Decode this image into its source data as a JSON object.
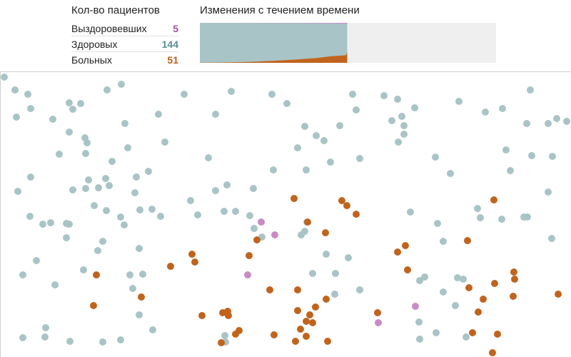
{
  "counts": {
    "title": "Кол-во пациентов",
    "rows": [
      {
        "label": "Выздоровевших",
        "value": "5",
        "color": "#a0559c"
      },
      {
        "label": "Здоровых",
        "value": "144",
        "color": "#5a8f99"
      },
      {
        "label": "Больных",
        "value": "51",
        "color": "#b5611c"
      }
    ]
  },
  "chart": {
    "title": "Изменения с течением времени"
  },
  "colors": {
    "healthy": "#a9c4c6",
    "sick": "#c0641d",
    "recovered": "#c98bc4",
    "future": "#efefef"
  },
  "chart_data": {
    "type": "area",
    "total_time": 100,
    "population": 200,
    "series": [
      {
        "key": "sick",
        "points": [
          [
            0,
            1
          ],
          [
            20,
            2
          ],
          [
            35,
            5
          ],
          [
            50,
            10
          ],
          [
            65,
            16
          ],
          [
            80,
            24
          ],
          [
            90,
            33
          ],
          [
            100,
            38
          ],
          [
            101,
            51
          ]
        ]
      },
      {
        "key": "recovered",
        "points": [
          [
            0,
            0
          ],
          [
            60,
            1
          ],
          [
            80,
            2
          ],
          [
            90,
            3
          ],
          [
            100,
            4
          ],
          [
            101,
            5
          ]
        ]
      }
    ],
    "current_time": 101
  },
  "people": [
    [
      5,
      107,
      "h"
    ],
    [
      20,
      125,
      "h"
    ],
    [
      38,
      131,
      "h"
    ],
    [
      22,
      163,
      "h"
    ],
    [
      42,
      151,
      "h"
    ],
    [
      73,
      166,
      "h"
    ],
    [
      96,
      143,
      "h"
    ],
    [
      101,
      152,
      "h"
    ],
    [
      112,
      144,
      "h"
    ],
    [
      149,
      125,
      "h"
    ],
    [
      169,
      117,
      "h"
    ],
    [
      174,
      172,
      "h"
    ],
    [
      257,
      131,
      "h"
    ],
    [
      323,
      127,
      "h"
    ],
    [
      380,
      131,
      "h"
    ],
    [
      401,
      144,
      "h"
    ],
    [
      221,
      159,
      "h"
    ],
    [
      301,
      159,
      "h"
    ],
    [
      96,
      184,
      "h"
    ],
    [
      118,
      192,
      "h"
    ],
    [
      121,
      199,
      "h"
    ],
    [
      119,
      214,
      "h"
    ],
    [
      82,
      215,
      "h"
    ],
    [
      156,
      225,
      "h"
    ],
    [
      178,
      206,
      "h"
    ],
    [
      230,
      198,
      "h"
    ],
    [
      291,
      220,
      "h"
    ],
    [
      42,
      247,
      "h"
    ],
    [
      24,
      267,
      "h"
    ],
    [
      123,
      251,
      "h"
    ],
    [
      147,
      249,
      "h"
    ],
    [
      152,
      259,
      "h"
    ],
    [
      101,
      265,
      "h"
    ],
    [
      119,
      263,
      "h"
    ],
    [
      137,
      262,
      "h"
    ],
    [
      190,
      247,
      "h"
    ],
    [
      207,
      239,
      "h"
    ],
    [
      188,
      269,
      "h"
    ],
    [
      131,
      287,
      "h"
    ],
    [
      148,
      294,
      "h"
    ],
    [
      168,
      303,
      "h"
    ],
    [
      195,
      293,
      "h"
    ],
    [
      212,
      292,
      "h"
    ],
    [
      224,
      302,
      "h"
    ],
    [
      266,
      280,
      "h"
    ],
    [
      276,
      300,
      "h"
    ],
    [
      301,
      266,
      "h"
    ],
    [
      317,
      258,
      "h"
    ],
    [
      354,
      263,
      "h"
    ],
    [
      382,
      237,
      "h"
    ],
    [
      428,
      237,
      "h"
    ],
    [
      462,
      226,
      "h"
    ],
    [
      503,
      221,
      "h"
    ],
    [
      416,
      206,
      "h"
    ],
    [
      426,
      176,
      "h"
    ],
    [
      442,
      189,
      "h"
    ],
    [
      453,
      196,
      "h"
    ],
    [
      475,
      175,
      "h"
    ],
    [
      493,
      131,
      "h"
    ],
    [
      498,
      153,
      "h"
    ],
    [
      537,
      133,
      "h"
    ],
    [
      556,
      138,
      "h"
    ],
    [
      548,
      168,
      "h"
    ],
    [
      562,
      162,
      "h"
    ],
    [
      565,
      175,
      "h"
    ],
    [
      580,
      150,
      "h"
    ],
    [
      557,
      198,
      "h"
    ],
    [
      565,
      187,
      "h"
    ],
    [
      609,
      219,
      "h"
    ],
    [
      630,
      242,
      "h"
    ],
    [
      642,
      141,
      "h"
    ],
    [
      679,
      156,
      "h"
    ],
    [
      703,
      151,
      "h"
    ],
    [
      742,
      125,
      "h"
    ],
    [
      737,
      172,
      "h"
    ],
    [
      767,
      172,
      "h"
    ],
    [
      779,
      165,
      "h"
    ],
    [
      793,
      169,
      "h"
    ],
    [
      708,
      209,
      "h"
    ],
    [
      744,
      217,
      "h"
    ],
    [
      773,
      218,
      "h"
    ],
    [
      714,
      238,
      "h"
    ],
    [
      767,
      268,
      "h"
    ],
    [
      41,
      302,
      "h"
    ],
    [
      59,
      313,
      "h"
    ],
    [
      70,
      311,
      "h"
    ],
    [
      92,
      312,
      "h"
    ],
    [
      96,
      313,
      "h"
    ],
    [
      92,
      332,
      "h"
    ],
    [
      143,
      337,
      "h"
    ],
    [
      136,
      350,
      "h"
    ],
    [
      173,
      314,
      "h"
    ],
    [
      194,
      347,
      "h"
    ],
    [
      313,
      295,
      "h"
    ],
    [
      329,
      295,
      "h"
    ],
    [
      349,
      301,
      "h"
    ],
    [
      355,
      319,
      "h"
    ],
    [
      366,
      331,
      "h"
    ],
    [
      421,
      328,
      "h"
    ],
    [
      426,
      323,
      "h"
    ],
    [
      429,
      310,
      "h"
    ],
    [
      574,
      296,
      "h"
    ],
    [
      612,
      312,
      "h"
    ],
    [
      620,
      337,
      "h"
    ],
    [
      668,
      291,
      "h"
    ],
    [
      672,
      304,
      "h"
    ],
    [
      702,
      306,
      "h"
    ],
    [
      733,
      303,
      "h"
    ],
    [
      738,
      303,
      "h"
    ],
    [
      772,
      333,
      "h"
    ],
    [
      50,
      364,
      "h"
    ],
    [
      31,
      384,
      "h"
    ],
    [
      76,
      398,
      "h"
    ],
    [
      116,
      377,
      "h"
    ],
    [
      181,
      384,
      "h"
    ],
    [
      199,
      383,
      "h"
    ],
    [
      185,
      403,
      "h"
    ],
    [
      194,
      440,
      "h"
    ],
    [
      213,
      461,
      "h"
    ],
    [
      456,
      355,
      "h"
    ],
    [
      487,
      360,
      "h"
    ],
    [
      437,
      382,
      "h"
    ],
    [
      469,
      382,
      "h"
    ],
    [
      468,
      411,
      "h"
    ],
    [
      503,
      405,
      "h"
    ],
    [
      587,
      392,
      "h"
    ],
    [
      594,
      387,
      "h"
    ],
    [
      620,
      408,
      "h"
    ],
    [
      640,
      388,
      "h"
    ],
    [
      648,
      390,
      "h"
    ],
    [
      637,
      427,
      "h"
    ],
    [
      586,
      450,
      "h"
    ],
    [
      610,
      465,
      "h"
    ],
    [
      652,
      471,
      "h"
    ],
    [
      587,
      474,
      "h"
    ],
    [
      314,
      469,
      "h"
    ],
    [
      315,
      478,
      "h"
    ],
    [
      63,
      458,
      "h"
    ],
    [
      62,
      471,
      "h"
    ],
    [
      31,
      472,
      "h"
    ],
    [
      97,
      477,
      "h"
    ],
    [
      143,
      478,
      "h"
    ],
    [
      168,
      475,
      "h"
    ],
    [
      134,
      384,
      "s"
    ],
    [
      130,
      427,
      "s"
    ],
    [
      197,
      415,
      "s"
    ],
    [
      238,
      372,
      "s"
    ],
    [
      268,
      355,
      "s"
    ],
    [
      272,
      366,
      "s"
    ],
    [
      282,
      441,
      "s"
    ],
    [
      311,
      437,
      "s"
    ],
    [
      318,
      435,
      "s"
    ],
    [
      319,
      441,
      "s"
    ],
    [
      334,
      462,
      "s"
    ],
    [
      329,
      467,
      "s"
    ],
    [
      348,
      357,
      "s"
    ],
    [
      359,
      335,
      "s"
    ],
    [
      377,
      405,
      "s"
    ],
    [
      383,
      468,
      "s"
    ],
    [
      411,
      277,
      "s"
    ],
    [
      430,
      310,
      "s"
    ],
    [
      455,
      325,
      "s"
    ],
    [
      478,
      280,
      "s"
    ],
    [
      485,
      287,
      "s"
    ],
    [
      498,
      299,
      "s"
    ],
    [
      416,
      405,
      "s"
    ],
    [
      416,
      434,
      "s"
    ],
    [
      433,
      440,
      "s"
    ],
    [
      441,
      429,
      "s"
    ],
    [
      456,
      418,
      "s"
    ],
    [
      428,
      449,
      "s"
    ],
    [
      437,
      451,
      "s"
    ],
    [
      420,
      460,
      "s"
    ],
    [
      428,
      470,
      "s"
    ],
    [
      413,
      477,
      "s"
    ],
    [
      458,
      477,
      "s"
    ],
    [
      556,
      352,
      "s"
    ],
    [
      567,
      343,
      "s"
    ],
    [
      570,
      377,
      "s"
    ],
    [
      528,
      437,
      "s"
    ],
    [
      654,
      336,
      "s"
    ],
    [
      656,
      402,
      "s"
    ],
    [
      676,
      418,
      "s"
    ],
    [
      669,
      436,
      "s"
    ],
    [
      691,
      279,
      "s"
    ],
    [
      692,
      396,
      "s"
    ],
    [
      719,
      380,
      "s"
    ],
    [
      720,
      390,
      "s"
    ],
    [
      718,
      414,
      "s"
    ],
    [
      781,
      411,
      "s"
    ],
    [
      696,
      467,
      "s"
    ],
    [
      689,
      493,
      "s"
    ],
    [
      661,
      465,
      "s"
    ],
    [
      309,
      479,
      "s"
    ],
    [
      365,
      310,
      "r"
    ],
    [
      384,
      328,
      "r"
    ],
    [
      346,
      384,
      "r"
    ],
    [
      581,
      428,
      "r"
    ],
    [
      529,
      451,
      "r"
    ]
  ]
}
